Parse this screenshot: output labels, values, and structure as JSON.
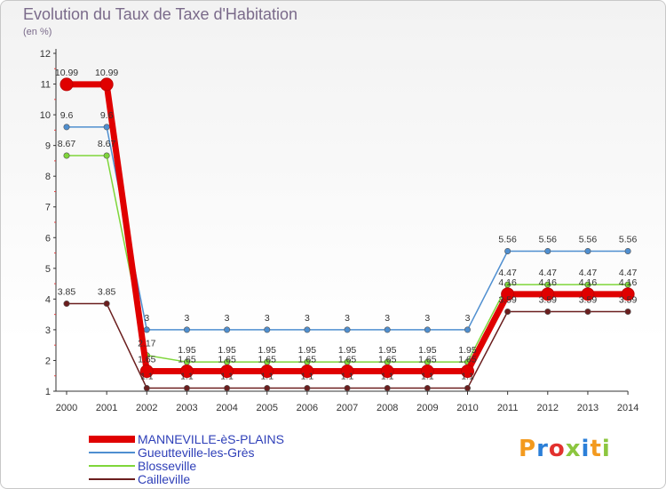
{
  "chart_data": {
    "type": "line",
    "title": "Evolution du Taux de Taxe d'Habitation",
    "subtitle": "(en %)",
    "x": [
      "2000",
      "2001",
      "2002",
      "2003",
      "2004",
      "2005",
      "2006",
      "2007",
      "2008",
      "2009",
      "2010",
      "2011",
      "2012",
      "2013",
      "2014"
    ],
    "ylim": [
      1,
      12
    ],
    "yticks": [
      "1",
      "2",
      "3",
      "4",
      "5",
      "6",
      "7",
      "8",
      "9",
      "10",
      "11",
      "12"
    ],
    "series": [
      {
        "name": "MANNEVILLE-èS-PLAINS",
        "color": "#e00000",
        "values": [
          10.99,
          10.99,
          1.65,
          1.65,
          1.65,
          1.65,
          1.65,
          1.65,
          1.65,
          1.65,
          1.65,
          4.16,
          4.16,
          4.16,
          4.16
        ],
        "labels": [
          "10.99",
          "10.99",
          "1.65",
          "1.65",
          "1.65",
          "1.65",
          "1.65",
          "1.65",
          "1.65",
          "1.65",
          "1.65",
          "4.16",
          "4.16",
          "4.16",
          "4.16"
        ]
      },
      {
        "name": "Gueutteville-les-Grès",
        "color": "#4f8fd0",
        "values": [
          9.6,
          9.6,
          3,
          3,
          3,
          3,
          3,
          3,
          3,
          3,
          3,
          5.56,
          5.56,
          5.56,
          5.56
        ],
        "labels": [
          "9.6",
          "9.6",
          "3",
          "3",
          "3",
          "3",
          "3",
          "3",
          "3",
          "3",
          "3",
          "5.56",
          "5.56",
          "5.56",
          "5.56"
        ]
      },
      {
        "name": "Blosseville",
        "color": "#7fd63a",
        "values": [
          8.67,
          8.67,
          2.17,
          1.95,
          1.95,
          1.95,
          1.95,
          1.95,
          1.95,
          1.95,
          1.95,
          4.47,
          4.47,
          4.47,
          4.47
        ],
        "labels": [
          "8.67",
          "8.67",
          "2.17",
          "1.95",
          "1.95",
          "1.95",
          "1.95",
          "1.95",
          "1.95",
          "1.95",
          "1.95",
          "4.47",
          "4.47",
          "4.47",
          "4.47"
        ]
      },
      {
        "name": "Cailleville",
        "color": "#6b1e1e",
        "values": [
          3.85,
          3.85,
          1.1,
          1.1,
          1.1,
          1.1,
          1.1,
          1.1,
          1.1,
          1.1,
          1.1,
          3.59,
          3.59,
          3.59,
          3.59
        ],
        "labels": [
          "3.85",
          "3.85",
          "1.1",
          "1.1",
          "1.1",
          "1.1",
          "1.1",
          "1.1",
          "1.1",
          "1.1",
          "1.1",
          "3.59",
          "3.59",
          "3.59",
          "3.59"
        ]
      }
    ]
  },
  "logo": {
    "text": "Proxiti"
  }
}
